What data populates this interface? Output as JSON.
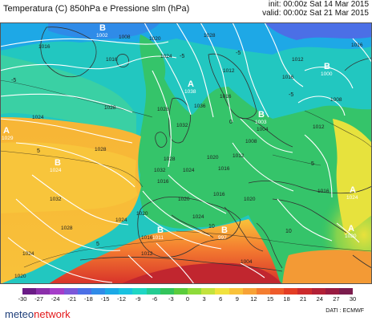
{
  "header": {
    "title": "Temperatura (C) 850hPa e Pressione slm (hPa)",
    "init": "init: 00:00z Sat 14 Mar 2015",
    "valid": "valid: 00:00z Sat 21 Mar 2015"
  },
  "map": {
    "pressure_labels": [
      "1000",
      "1008",
      "1012",
      "1016",
      "1020",
      "1024",
      "1028",
      "1032",
      "1036",
      "1040",
      "1004"
    ],
    "isobar_values": [
      "1008",
      "1016",
      "1020",
      "1024",
      "1028",
      "1028",
      "1024",
      "1016",
      "1032",
      "1028",
      "1024",
      "1020",
      "1024",
      "1028",
      "1020",
      "1016",
      "1036",
      "1032",
      "1028",
      "1024",
      "1020",
      "1016",
      "1012",
      "1008",
      "1004",
      "1012",
      "1016",
      "1012",
      "1016",
      "1008",
      "1012",
      "1016",
      "1020",
      "1024",
      "1016",
      "1020",
      "1016",
      "1032",
      "1028",
      "1012",
      "1004",
      "1016"
    ],
    "centers": [
      {
        "letter": "B",
        "value": "1002"
      },
      {
        "letter": "A",
        "value": "1029"
      },
      {
        "letter": "B",
        "value": "1024"
      },
      {
        "letter": "A",
        "value": "1038"
      },
      {
        "letter": "B",
        "value": "1003"
      },
      {
        "letter": "B",
        "value": "1000"
      },
      {
        "letter": "A",
        "value": "1024"
      },
      {
        "letter": "A",
        "value": "1020"
      },
      {
        "letter": "B",
        "value": "1011"
      },
      {
        "letter": "B",
        "value": "997"
      }
    ],
    "temperature_isotherm_labels": [
      "-5",
      "5",
      "-5",
      "0",
      "5",
      "-5",
      "-5",
      "10",
      "5",
      "10"
    ]
  },
  "legend": {
    "ticks": [
      "-30",
      "-27",
      "-24",
      "-21",
      "-18",
      "-15",
      "-12",
      "-9",
      "-6",
      "-3",
      "0",
      "3",
      "6",
      "9",
      "12",
      "15",
      "18",
      "21",
      "24",
      "27",
      "30"
    ],
    "colors": [
      "#6a1b86",
      "#8b2faa",
      "#a53dc9",
      "#7b57d8",
      "#4b6fe6",
      "#2f8be8",
      "#1ba9e6",
      "#19c2e0",
      "#1fd6c4",
      "#24cc92",
      "#33c45b",
      "#5bcc3c",
      "#8edb3a",
      "#c3e23d",
      "#f1e23e",
      "#f9c23a",
      "#f7a236",
      "#f47d30",
      "#ee5a2a",
      "#e33d24",
      "#cc2a2c",
      "#b22036",
      "#981a40",
      "#7b1c4d"
    ]
  },
  "footer": {
    "logo_meteo": "meteo",
    "logo_network": "network",
    "credits": "DATI : ECMWF"
  },
  "colors": {
    "land_outline": "#333333",
    "isobar": "#ffffff"
  }
}
